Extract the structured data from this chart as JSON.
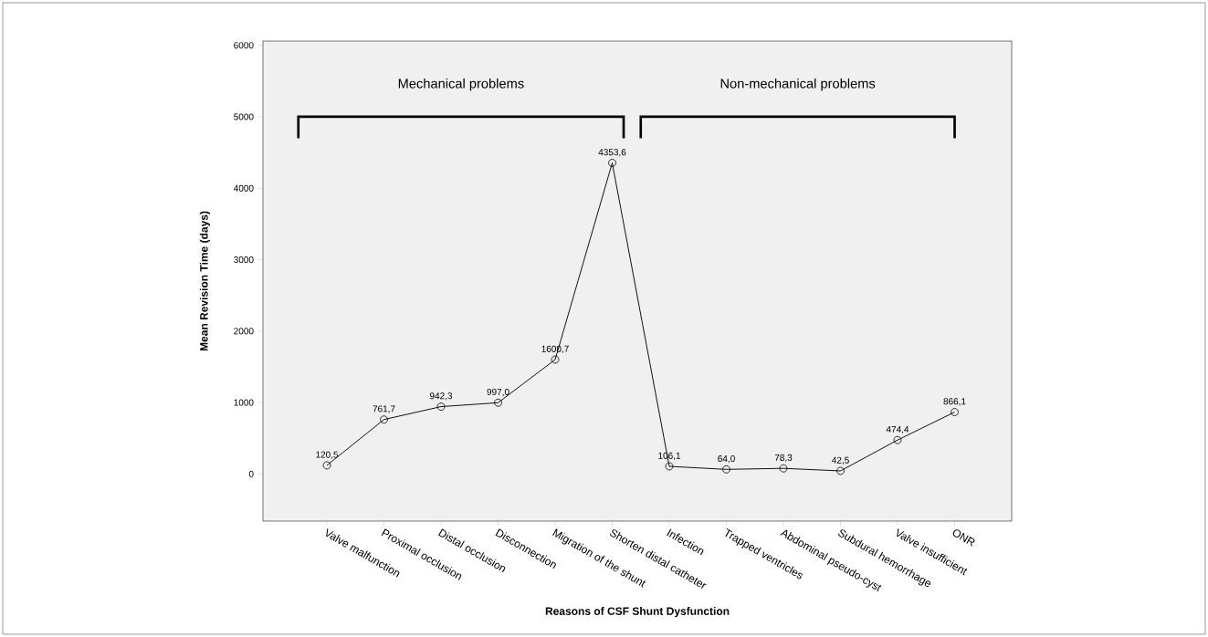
{
  "chart_data": {
    "type": "line",
    "xlabel": "Reasons of CSF Shunt Dysfunction",
    "ylabel": "Mean Revision Time (days)",
    "categories": [
      "Valve malfunction",
      "Proximal occlusion",
      "Distal occlusion",
      "Disconnection",
      "Migration of the shunt",
      "Shorten distal catheter",
      "Infection",
      "Trapped ventricles",
      "Abdominal pseudo-cyst",
      "Subdural hemorrhage",
      "Valve insufficient",
      "ONR"
    ],
    "series": [
      {
        "color": "#000000",
        "values": [
          120.5,
          761.7,
          942.3,
          997.0,
          1600.7,
          4353.6,
          106.1,
          64.0,
          78.3,
          42.5,
          474.4,
          866.1
        ],
        "value_labels": [
          "120,5",
          "761,7",
          "942,3",
          "997,0",
          "1600,7",
          "4353,6",
          "106,1",
          "64,0",
          "78,3",
          "42,5",
          "474,4",
          "866,1"
        ]
      }
    ],
    "ylim": [
      -660,
      6060
    ],
    "yticks": [
      0,
      1000,
      2000,
      3000,
      4000,
      5000,
      6000
    ],
    "annotations": [
      "Mechanical problems",
      "Non-mechanical problems"
    ],
    "marker": "circle",
    "line_style": "solid",
    "grid": false
  }
}
